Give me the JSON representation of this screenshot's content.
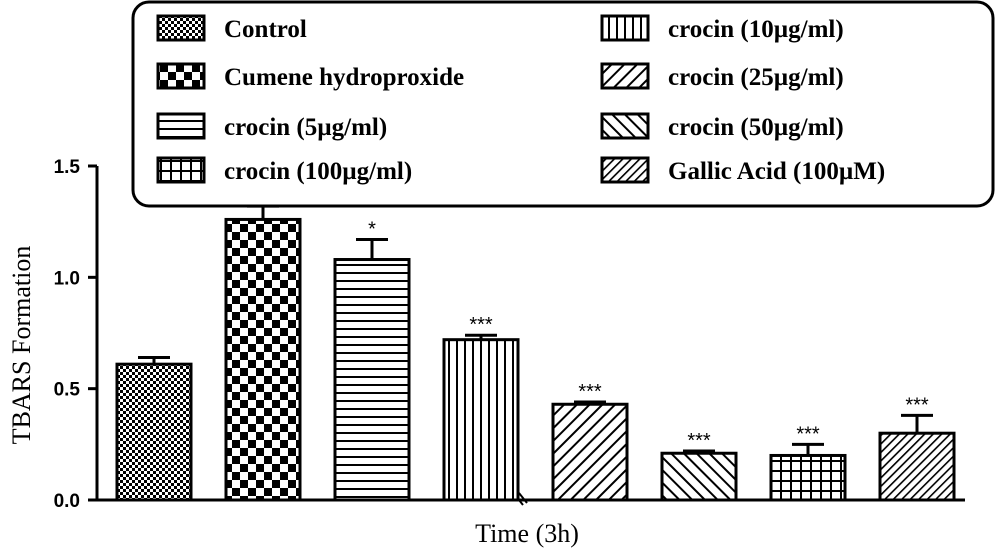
{
  "chart_data": {
    "type": "bar",
    "title": "",
    "xlabel": "Time (3h)",
    "ylabel": "TBARS Formation",
    "ylim": [
      0,
      1.5
    ],
    "yticks": [
      0.0,
      0.5,
      1.0,
      1.5
    ],
    "ytick_labels": [
      "0.0",
      "0.5",
      "1.0",
      "1.5"
    ],
    "categories": [
      "Control",
      "Cumene hydroproxide",
      "crocin (5µg/ml)",
      "crocin (10µg/ml)",
      "crocin (25µg/ml)",
      "crocin (50µg/ml)",
      "crocin (100µg/ml)",
      "Gallic Acid (100µM)"
    ],
    "values": [
      0.61,
      1.26,
      1.08,
      0.72,
      0.43,
      0.21,
      0.2,
      0.3
    ],
    "errors": [
      0.03,
      0.06,
      0.09,
      0.02,
      0.01,
      0.01,
      0.05,
      0.08
    ],
    "significance": [
      "",
      "",
      "*",
      "***",
      "***",
      "***",
      "***",
      "***"
    ],
    "patterns": [
      "fine-check",
      "checker",
      "horizontal",
      "vertical",
      "diagonal-up",
      "diagonal-down",
      "grid",
      "dense-diagonal"
    ],
    "legend_placement": "top-right",
    "legend_order": [
      0,
      3,
      1,
      4,
      2,
      5,
      6,
      7
    ],
    "grid": false
  }
}
